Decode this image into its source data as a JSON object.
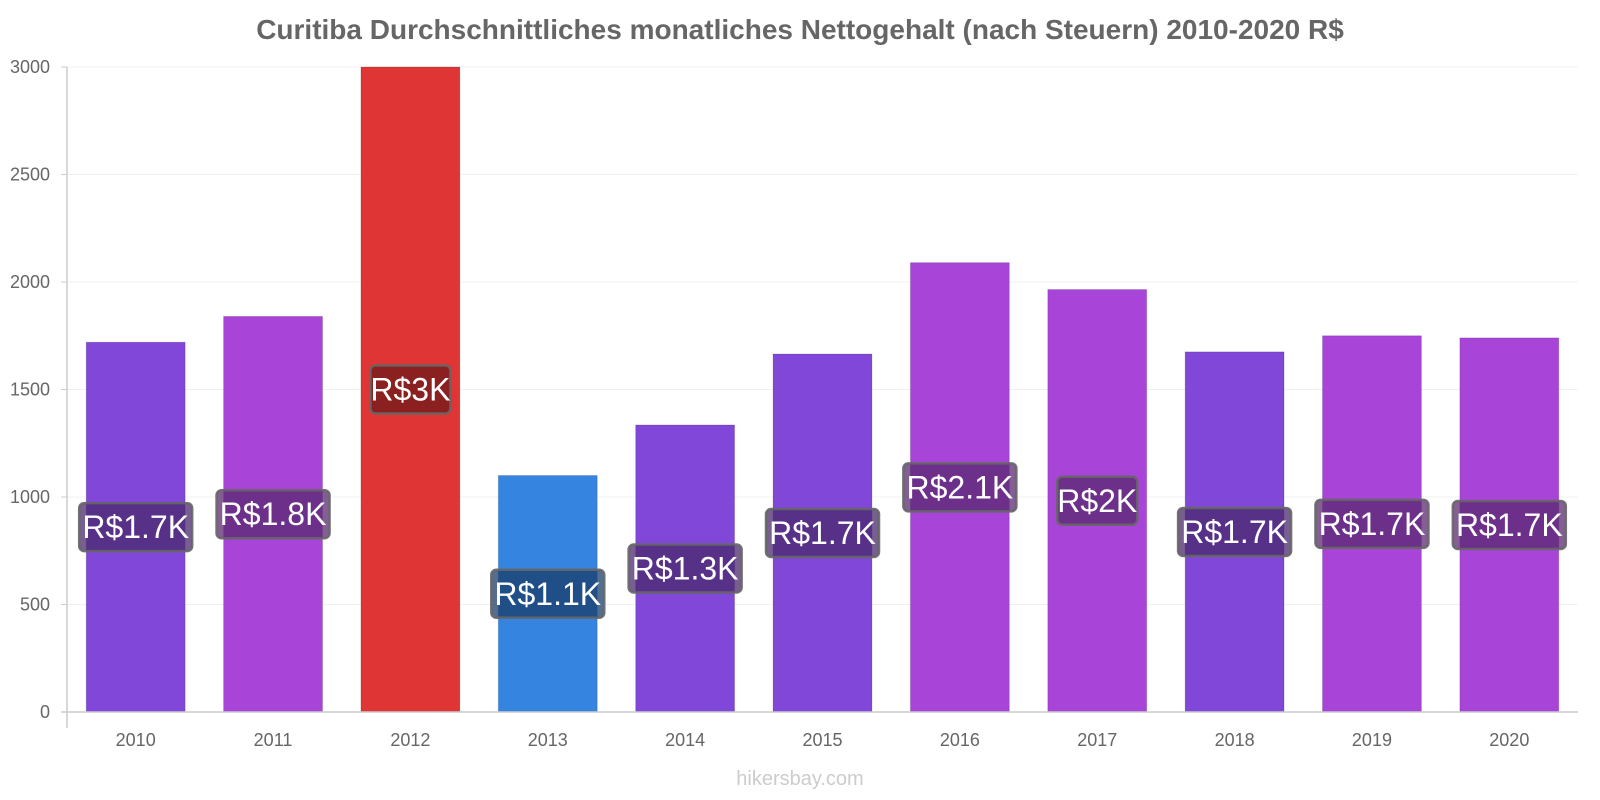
{
  "chart_data": {
    "type": "bar",
    "title": "Curitiba Durchschnittliches monatliches Nettogehalt (nach Steuern) 2010-2020 R$",
    "xlabel": "",
    "ylabel": "",
    "ylim": [
      0,
      3000
    ],
    "yticks": [
      0,
      500,
      1000,
      1500,
      2000,
      2500,
      3000
    ],
    "grid": true,
    "categories": [
      "2010",
      "2011",
      "2012",
      "2013",
      "2014",
      "2015",
      "2016",
      "2017",
      "2018",
      "2019",
      "2020"
    ],
    "values": [
      1720,
      1840,
      3000,
      1100,
      1335,
      1665,
      2090,
      1965,
      1675,
      1750,
      1740
    ],
    "data_labels": [
      "R$1.7K",
      "R$1.8K",
      "R$3K",
      "R$1.1K",
      "R$1.3K",
      "R$1.7K",
      "R$2.1K",
      "R$2K",
      "R$1.7K",
      "R$1.7K",
      "R$1.7K"
    ],
    "bar_colors": [
      "#8047d8",
      "#a845d8",
      "#e03535",
      "#3584e0",
      "#8047d8",
      "#8047d8",
      "#a845d8",
      "#a845d8",
      "#8047d8",
      "#a845d8",
      "#a845d8"
    ],
    "label_bg_colors": [
      "#4a2a6e",
      "#5a2a70",
      "#6e1a1a",
      "#1a3e6a",
      "#4a2a6e",
      "#4a2a6e",
      "#5a2a70",
      "#5a2a70",
      "#4a2a6e",
      "#5a2a70",
      "#5a2a70"
    ]
  },
  "watermark": "hikersbay.com"
}
